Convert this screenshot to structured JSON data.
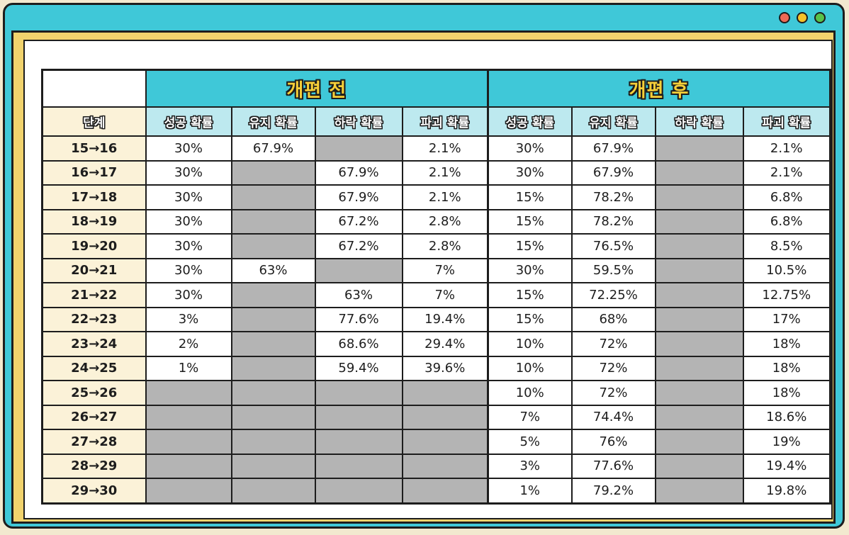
{
  "colors": {
    "window_frame": "#3fc8d8",
    "header_bg": "#3fc8d8",
    "subheader_bg": "#bde9ef",
    "stage_bg": "#fbf2d8",
    "empty_cell": "#b4b4b4",
    "title_text": "#f7cf38"
  },
  "window_controls": [
    "close-dot",
    "minimize-dot",
    "maximize-dot"
  ],
  "table": {
    "group_before": "개편 전",
    "group_after": "개편 후",
    "stage_header": "단계",
    "columns": [
      "성공 확률",
      "유지 확률",
      "하락 확률",
      "파괴 확률"
    ],
    "rows": [
      {
        "stage": "15→16",
        "before": [
          "30%",
          "67.9%",
          "",
          "2.1%"
        ],
        "after": [
          "30%",
          "67.9%",
          "",
          "2.1%"
        ]
      },
      {
        "stage": "16→17",
        "before": [
          "30%",
          "",
          "67.9%",
          "2.1%"
        ],
        "after": [
          "30%",
          "67.9%",
          "",
          "2.1%"
        ]
      },
      {
        "stage": "17→18",
        "before": [
          "30%",
          "",
          "67.9%",
          "2.1%"
        ],
        "after": [
          "15%",
          "78.2%",
          "",
          "6.8%"
        ]
      },
      {
        "stage": "18→19",
        "before": [
          "30%",
          "",
          "67.2%",
          "2.8%"
        ],
        "after": [
          "15%",
          "78.2%",
          "",
          "6.8%"
        ]
      },
      {
        "stage": "19→20",
        "before": [
          "30%",
          "",
          "67.2%",
          "2.8%"
        ],
        "after": [
          "15%",
          "76.5%",
          "",
          "8.5%"
        ]
      },
      {
        "stage": "20→21",
        "before": [
          "30%",
          "63%",
          "",
          "7%"
        ],
        "after": [
          "30%",
          "59.5%",
          "",
          "10.5%"
        ]
      },
      {
        "stage": "21→22",
        "before": [
          "30%",
          "",
          "63%",
          "7%"
        ],
        "after": [
          "15%",
          "72.25%",
          "",
          "12.75%"
        ]
      },
      {
        "stage": "22→23",
        "before": [
          "3%",
          "",
          "77.6%",
          "19.4%"
        ],
        "after": [
          "15%",
          "68%",
          "",
          "17%"
        ]
      },
      {
        "stage": "23→24",
        "before": [
          "2%",
          "",
          "68.6%",
          "29.4%"
        ],
        "after": [
          "10%",
          "72%",
          "",
          "18%"
        ]
      },
      {
        "stage": "24→25",
        "before": [
          "1%",
          "",
          "59.4%",
          "39.6%"
        ],
        "after": [
          "10%",
          "72%",
          "",
          "18%"
        ]
      },
      {
        "stage": "25→26",
        "before": [
          "",
          "",
          "",
          ""
        ],
        "after": [
          "10%",
          "72%",
          "",
          "18%"
        ]
      },
      {
        "stage": "26→27",
        "before": [
          "",
          "",
          "",
          ""
        ],
        "after": [
          "7%",
          "74.4%",
          "",
          "18.6%"
        ]
      },
      {
        "stage": "27→28",
        "before": [
          "",
          "",
          "",
          ""
        ],
        "after": [
          "5%",
          "76%",
          "",
          "19%"
        ]
      },
      {
        "stage": "28→29",
        "before": [
          "",
          "",
          "",
          ""
        ],
        "after": [
          "3%",
          "77.6%",
          "",
          "19.4%"
        ]
      },
      {
        "stage": "29→30",
        "before": [
          "",
          "",
          "",
          ""
        ],
        "after": [
          "1%",
          "79.2%",
          "",
          "19.8%"
        ]
      }
    ]
  }
}
